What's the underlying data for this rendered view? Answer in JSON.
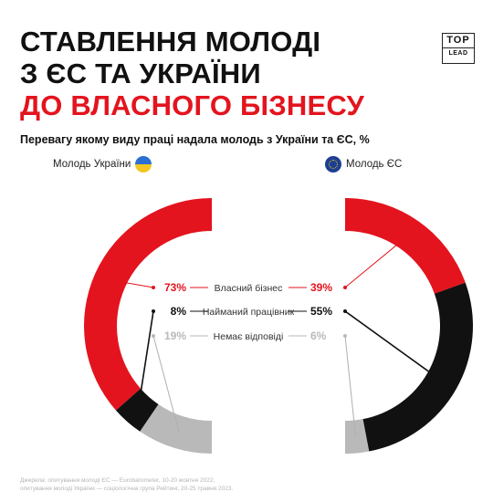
{
  "header": {
    "title_lines": [
      "СТАВЛЕННЯ МОЛОДІ",
      "З ЄС ТА УКРАЇНИ",
      "ДО ВЛАСНОГО БІЗНЕСУ"
    ],
    "logo_top": "TOP",
    "logo_bottom": "LEAD"
  },
  "chart_data": {
    "type": "pie",
    "title": "Перевагу якому виду праці надала молодь з України та ЄС, %",
    "categories": [
      "Власний бізнес",
      "Найманий працівник",
      "Немає відповіді"
    ],
    "series": [
      {
        "name": "Молодь України",
        "values": [
          73,
          8,
          19
        ],
        "labels": [
          "73%",
          "8%",
          "19%"
        ]
      },
      {
        "name": "Молодь ЄС",
        "values": [
          39,
          55,
          6
        ],
        "labels": [
          "39%",
          "55%",
          "6%"
        ]
      }
    ],
    "colors": [
      "#e3141e",
      "#111111",
      "#b9b9b9"
    ],
    "label_colors": [
      "#e3141e",
      "#111111",
      "#b9b9b9"
    ]
  },
  "footer": {
    "lines": [
      "Джерела: опитування молоді ЄС — Eurobarometer, 10-20 жовтня 2022;",
      "опитування молоді України — соціологічна група Рейтинг, 20-25 травня 2023."
    ]
  }
}
